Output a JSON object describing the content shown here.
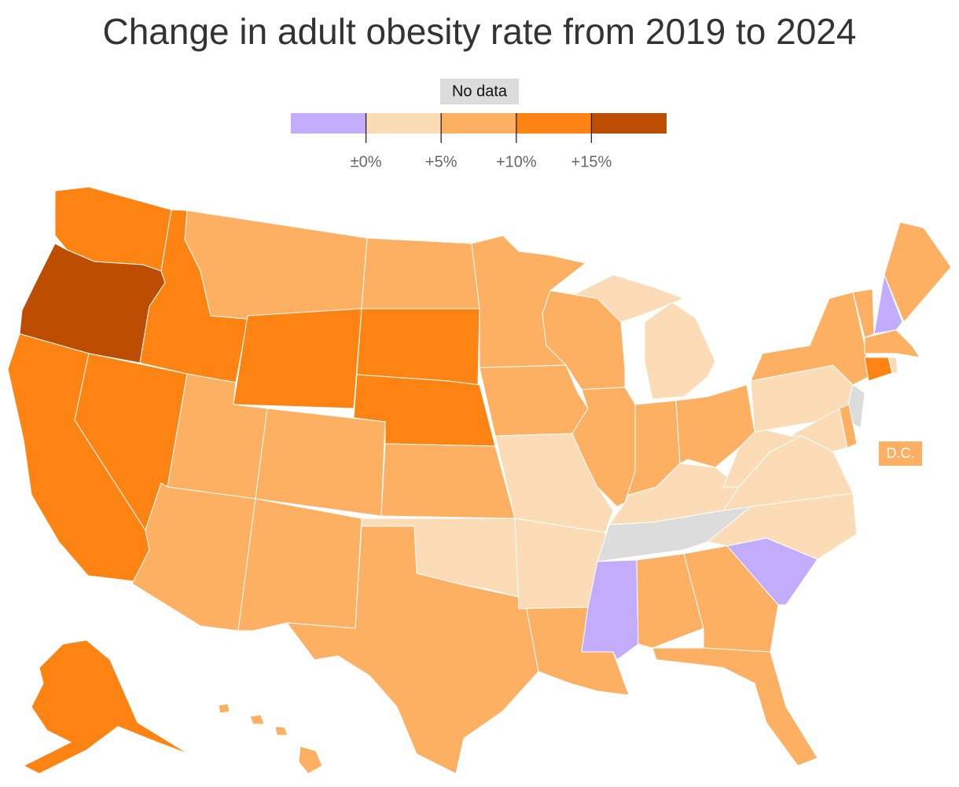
{
  "title": "Change in adult obesity rate from 2019 to 2024",
  "legend": {
    "no_data_label": "No data",
    "no_data_color": "#dcdcdc",
    "colors": [
      "#c4acfc",
      "#fbdcb6",
      "#fdaf62",
      "#fd8312",
      "#bd4d00"
    ],
    "xlim": [
      -5,
      20
    ],
    "xticks": [
      {
        "value": 0,
        "label": "±0%"
      },
      {
        "value": 5,
        "label": "+5%"
      },
      {
        "value": 10,
        "label": "+10%"
      },
      {
        "value": 15,
        "label": "+15%"
      }
    ]
  },
  "regions": [
    {
      "bin": 3
    },
    {
      "bin": 4
    },
    {
      "bin": 3
    },
    {
      "bin": 3
    },
    {
      "bin": 3
    },
    {
      "bin": 2
    },
    {
      "bin": 3
    },
    {
      "bin": 2
    },
    {
      "bin": 2
    },
    {
      "bin": 2
    },
    {
      "bin": 2
    },
    {
      "bin": 2
    },
    {
      "bin": 3
    },
    {
      "bin": 3
    },
    {
      "bin": 2
    },
    {
      "bin": 1
    },
    {
      "bin": 2
    },
    {
      "bin": 2
    },
    {
      "bin": 2
    },
    {
      "bin": 1
    },
    {
      "bin": 1
    },
    {
      "bin": 2
    },
    {
      "bin": 2
    },
    {
      "bin": 2
    },
    {
      "bin": 1
    },
    {
      "bin": 2
    },
    {
      "bin": 2
    },
    {
      "bin": 1
    },
    {
      "bin": null
    },
    {
      "bin": 0
    },
    {
      "bin": 2
    },
    {
      "bin": 2
    },
    {
      "bin": 2
    },
    {
      "bin": 0
    },
    {
      "bin": 1
    },
    {
      "bin": 1
    },
    {
      "bin": 1
    },
    {
      "bin": 1
    },
    {
      "bin": 2
    },
    {
      "bin": null
    },
    {
      "bin": 1
    },
    {
      "bin": 2
    },
    {
      "bin": 2
    },
    {
      "bin": 0
    },
    {
      "bin": 2
    },
    {
      "bin": 2
    },
    {
      "bin": 3
    },
    {
      "bin": 1
    },
    {
      "bin": 3
    },
    {
      "bin": 2
    }
  ],
  "dc": {
    "label": "D.C.",
    "bin": 2
  }
}
